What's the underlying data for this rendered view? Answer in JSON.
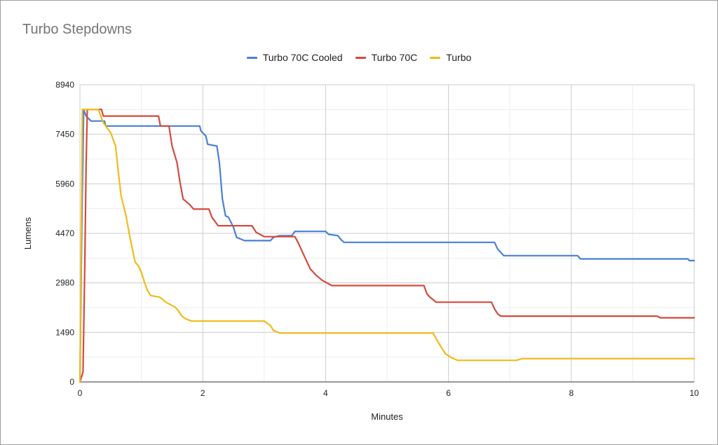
{
  "chart_data": {
    "type": "line",
    "title": "Turbo Stepdowns",
    "xlabel": "Minutes",
    "ylabel": "Lumens",
    "xlim": [
      0,
      10
    ],
    "ylim": [
      0,
      8940
    ],
    "xticks": [
      0,
      2,
      4,
      6,
      8,
      10
    ],
    "yticks": [
      0,
      1490,
      2980,
      4470,
      5960,
      7450,
      8940
    ],
    "grid": true,
    "legend_position": "top",
    "series": [
      {
        "name": "Turbo 70C Cooled",
        "color": "#4a7fd6",
        "points": [
          [
            0,
            0
          ],
          [
            0.03,
            4600
          ],
          [
            0.06,
            8200
          ],
          [
            0.1,
            8000
          ],
          [
            0.18,
            7850
          ],
          [
            0.4,
            7850
          ],
          [
            0.42,
            7700
          ],
          [
            1.95,
            7700
          ],
          [
            1.97,
            7550
          ],
          [
            2.05,
            7400
          ],
          [
            2.08,
            7150
          ],
          [
            2.23,
            7100
          ],
          [
            2.27,
            6600
          ],
          [
            2.32,
            5500
          ],
          [
            2.37,
            5000
          ],
          [
            2.42,
            4950
          ],
          [
            2.5,
            4650
          ],
          [
            2.55,
            4350
          ],
          [
            2.68,
            4250
          ],
          [
            3.1,
            4250
          ],
          [
            3.15,
            4350
          ],
          [
            3.25,
            4400
          ],
          [
            3.45,
            4400
          ],
          [
            3.5,
            4530
          ],
          [
            4.0,
            4530
          ],
          [
            4.05,
            4440
          ],
          [
            4.2,
            4400
          ],
          [
            4.25,
            4280
          ],
          [
            4.3,
            4200
          ],
          [
            6.75,
            4200
          ],
          [
            6.8,
            4000
          ],
          [
            6.9,
            3800
          ],
          [
            7.2,
            3800
          ],
          [
            8.1,
            3800
          ],
          [
            8.15,
            3700
          ],
          [
            9.9,
            3700
          ],
          [
            9.92,
            3650
          ],
          [
            10,
            3650
          ]
        ]
      },
      {
        "name": "Turbo 70C",
        "color": "#d54a3c",
        "points": [
          [
            0,
            0
          ],
          [
            0.05,
            300
          ],
          [
            0.08,
            3600
          ],
          [
            0.1,
            6500
          ],
          [
            0.12,
            8200
          ],
          [
            0.35,
            8200
          ],
          [
            0.38,
            8000
          ],
          [
            1.28,
            8000
          ],
          [
            1.31,
            7700
          ],
          [
            1.45,
            7700
          ],
          [
            1.5,
            7100
          ],
          [
            1.58,
            6600
          ],
          [
            1.63,
            6000
          ],
          [
            1.68,
            5500
          ],
          [
            1.78,
            5350
          ],
          [
            1.85,
            5200
          ],
          [
            2.1,
            5200
          ],
          [
            2.15,
            4950
          ],
          [
            2.25,
            4700
          ],
          [
            2.8,
            4700
          ],
          [
            2.87,
            4500
          ],
          [
            2.92,
            4450
          ],
          [
            3.0,
            4370
          ],
          [
            3.5,
            4370
          ],
          [
            3.55,
            4200
          ],
          [
            3.65,
            3800
          ],
          [
            3.75,
            3400
          ],
          [
            3.85,
            3200
          ],
          [
            3.95,
            3050
          ],
          [
            4.1,
            2900
          ],
          [
            5.6,
            2900
          ],
          [
            5.65,
            2650
          ],
          [
            5.7,
            2550
          ],
          [
            5.8,
            2400
          ],
          [
            6.7,
            2400
          ],
          [
            6.75,
            2200
          ],
          [
            6.8,
            2050
          ],
          [
            6.85,
            1980
          ],
          [
            9.4,
            1980
          ],
          [
            9.45,
            1930
          ],
          [
            10,
            1930
          ]
        ]
      },
      {
        "name": "Turbo",
        "color": "#f0bb1a",
        "points": [
          [
            0,
            0
          ],
          [
            0.04,
            8200
          ],
          [
            0.3,
            8200
          ],
          [
            0.38,
            7800
          ],
          [
            0.5,
            7500
          ],
          [
            0.58,
            7100
          ],
          [
            0.62,
            6400
          ],
          [
            0.67,
            5600
          ],
          [
            0.75,
            5000
          ],
          [
            0.82,
            4300
          ],
          [
            0.9,
            3600
          ],
          [
            0.95,
            3500
          ],
          [
            1.0,
            3300
          ],
          [
            1.05,
            3000
          ],
          [
            1.1,
            2750
          ],
          [
            1.15,
            2600
          ],
          [
            1.3,
            2550
          ],
          [
            1.4,
            2400
          ],
          [
            1.55,
            2250
          ],
          [
            1.6,
            2150
          ],
          [
            1.65,
            2000
          ],
          [
            1.72,
            1900
          ],
          [
            1.82,
            1830
          ],
          [
            3.0,
            1830
          ],
          [
            3.1,
            1700
          ],
          [
            3.15,
            1550
          ],
          [
            3.25,
            1470
          ],
          [
            5.75,
            1470
          ],
          [
            5.8,
            1300
          ],
          [
            5.88,
            1050
          ],
          [
            5.95,
            850
          ],
          [
            6.05,
            730
          ],
          [
            6.15,
            650
          ],
          [
            7.1,
            650
          ],
          [
            7.2,
            700
          ],
          [
            10,
            700
          ]
        ]
      }
    ]
  }
}
